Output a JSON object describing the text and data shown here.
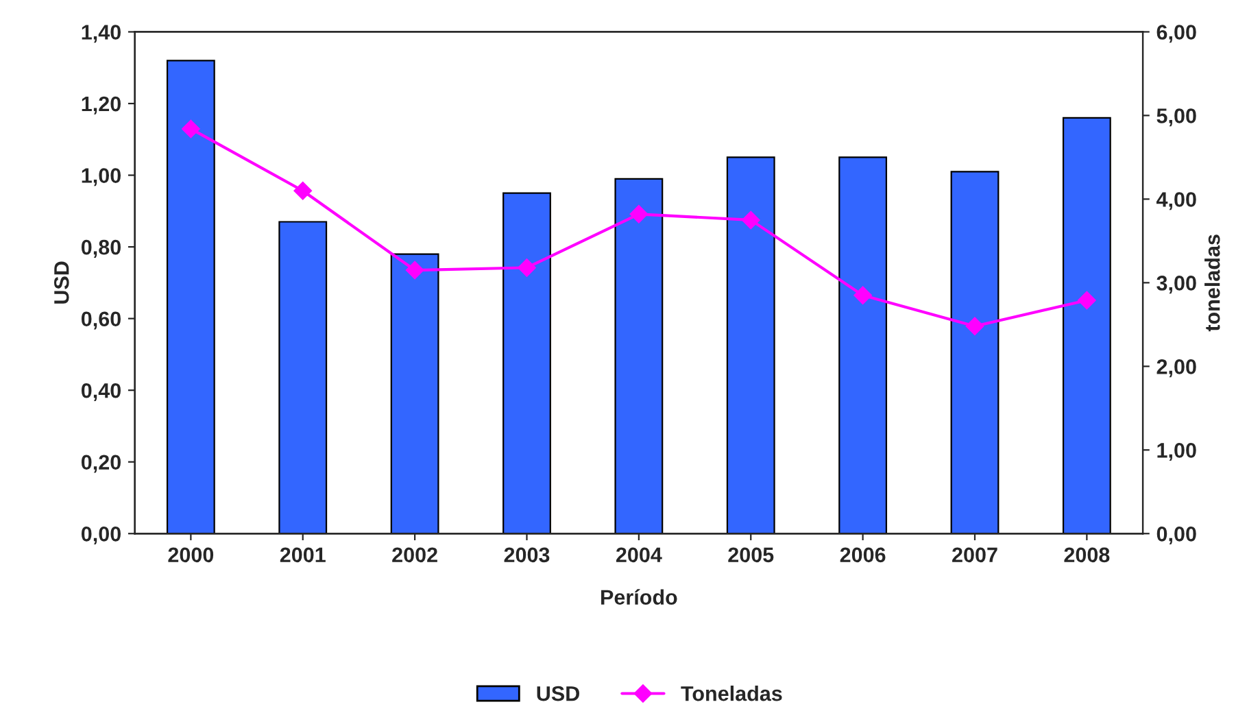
{
  "chart_data": {
    "type": "bar",
    "xlabel": "Período",
    "ylabel": "USD",
    "y2label": "toneladas",
    "categories": [
      "2000",
      "2001",
      "2002",
      "2003",
      "2004",
      "2005",
      "2006",
      "2007",
      "2008"
    ],
    "series": [
      {
        "name": "USD",
        "color": "#3366ff",
        "values": [
          1.32,
          0.87,
          0.78,
          0.95,
          0.99,
          1.05,
          1.05,
          1.01,
          1.16
        ]
      },
      {
        "name": "Toneladas",
        "type": "line",
        "axis": "y2",
        "color": "#ff00ff",
        "marker": "diamond",
        "values": [
          4.84,
          4.1,
          3.15,
          3.18,
          3.82,
          3.75,
          2.85,
          2.48,
          2.79
        ]
      }
    ],
    "ylim": [
      0,
      1.4
    ],
    "yticks": [
      {
        "value": 0,
        "label": "0,00"
      },
      {
        "value": 0.2,
        "label": "0,20"
      },
      {
        "value": 0.4,
        "label": "0,40"
      },
      {
        "value": 0.6,
        "label": "0,60"
      },
      {
        "value": 0.8,
        "label": "0,80"
      },
      {
        "value": 1.0,
        "label": "1,00"
      },
      {
        "value": 1.2,
        "label": "1,20"
      },
      {
        "value": 1.4,
        "label": "1,40"
      }
    ],
    "y2lim": [
      0,
      6
    ],
    "y2ticks": [
      {
        "value": 0,
        "label": "0,00"
      },
      {
        "value": 1,
        "label": "1,00"
      },
      {
        "value": 2,
        "label": "2,00"
      },
      {
        "value": 3,
        "label": "3,00"
      },
      {
        "value": 4,
        "label": "4,00"
      },
      {
        "value": 5,
        "label": "5,00"
      },
      {
        "value": 6,
        "label": "6,00"
      }
    ],
    "grid": false,
    "legend": "bottom"
  }
}
